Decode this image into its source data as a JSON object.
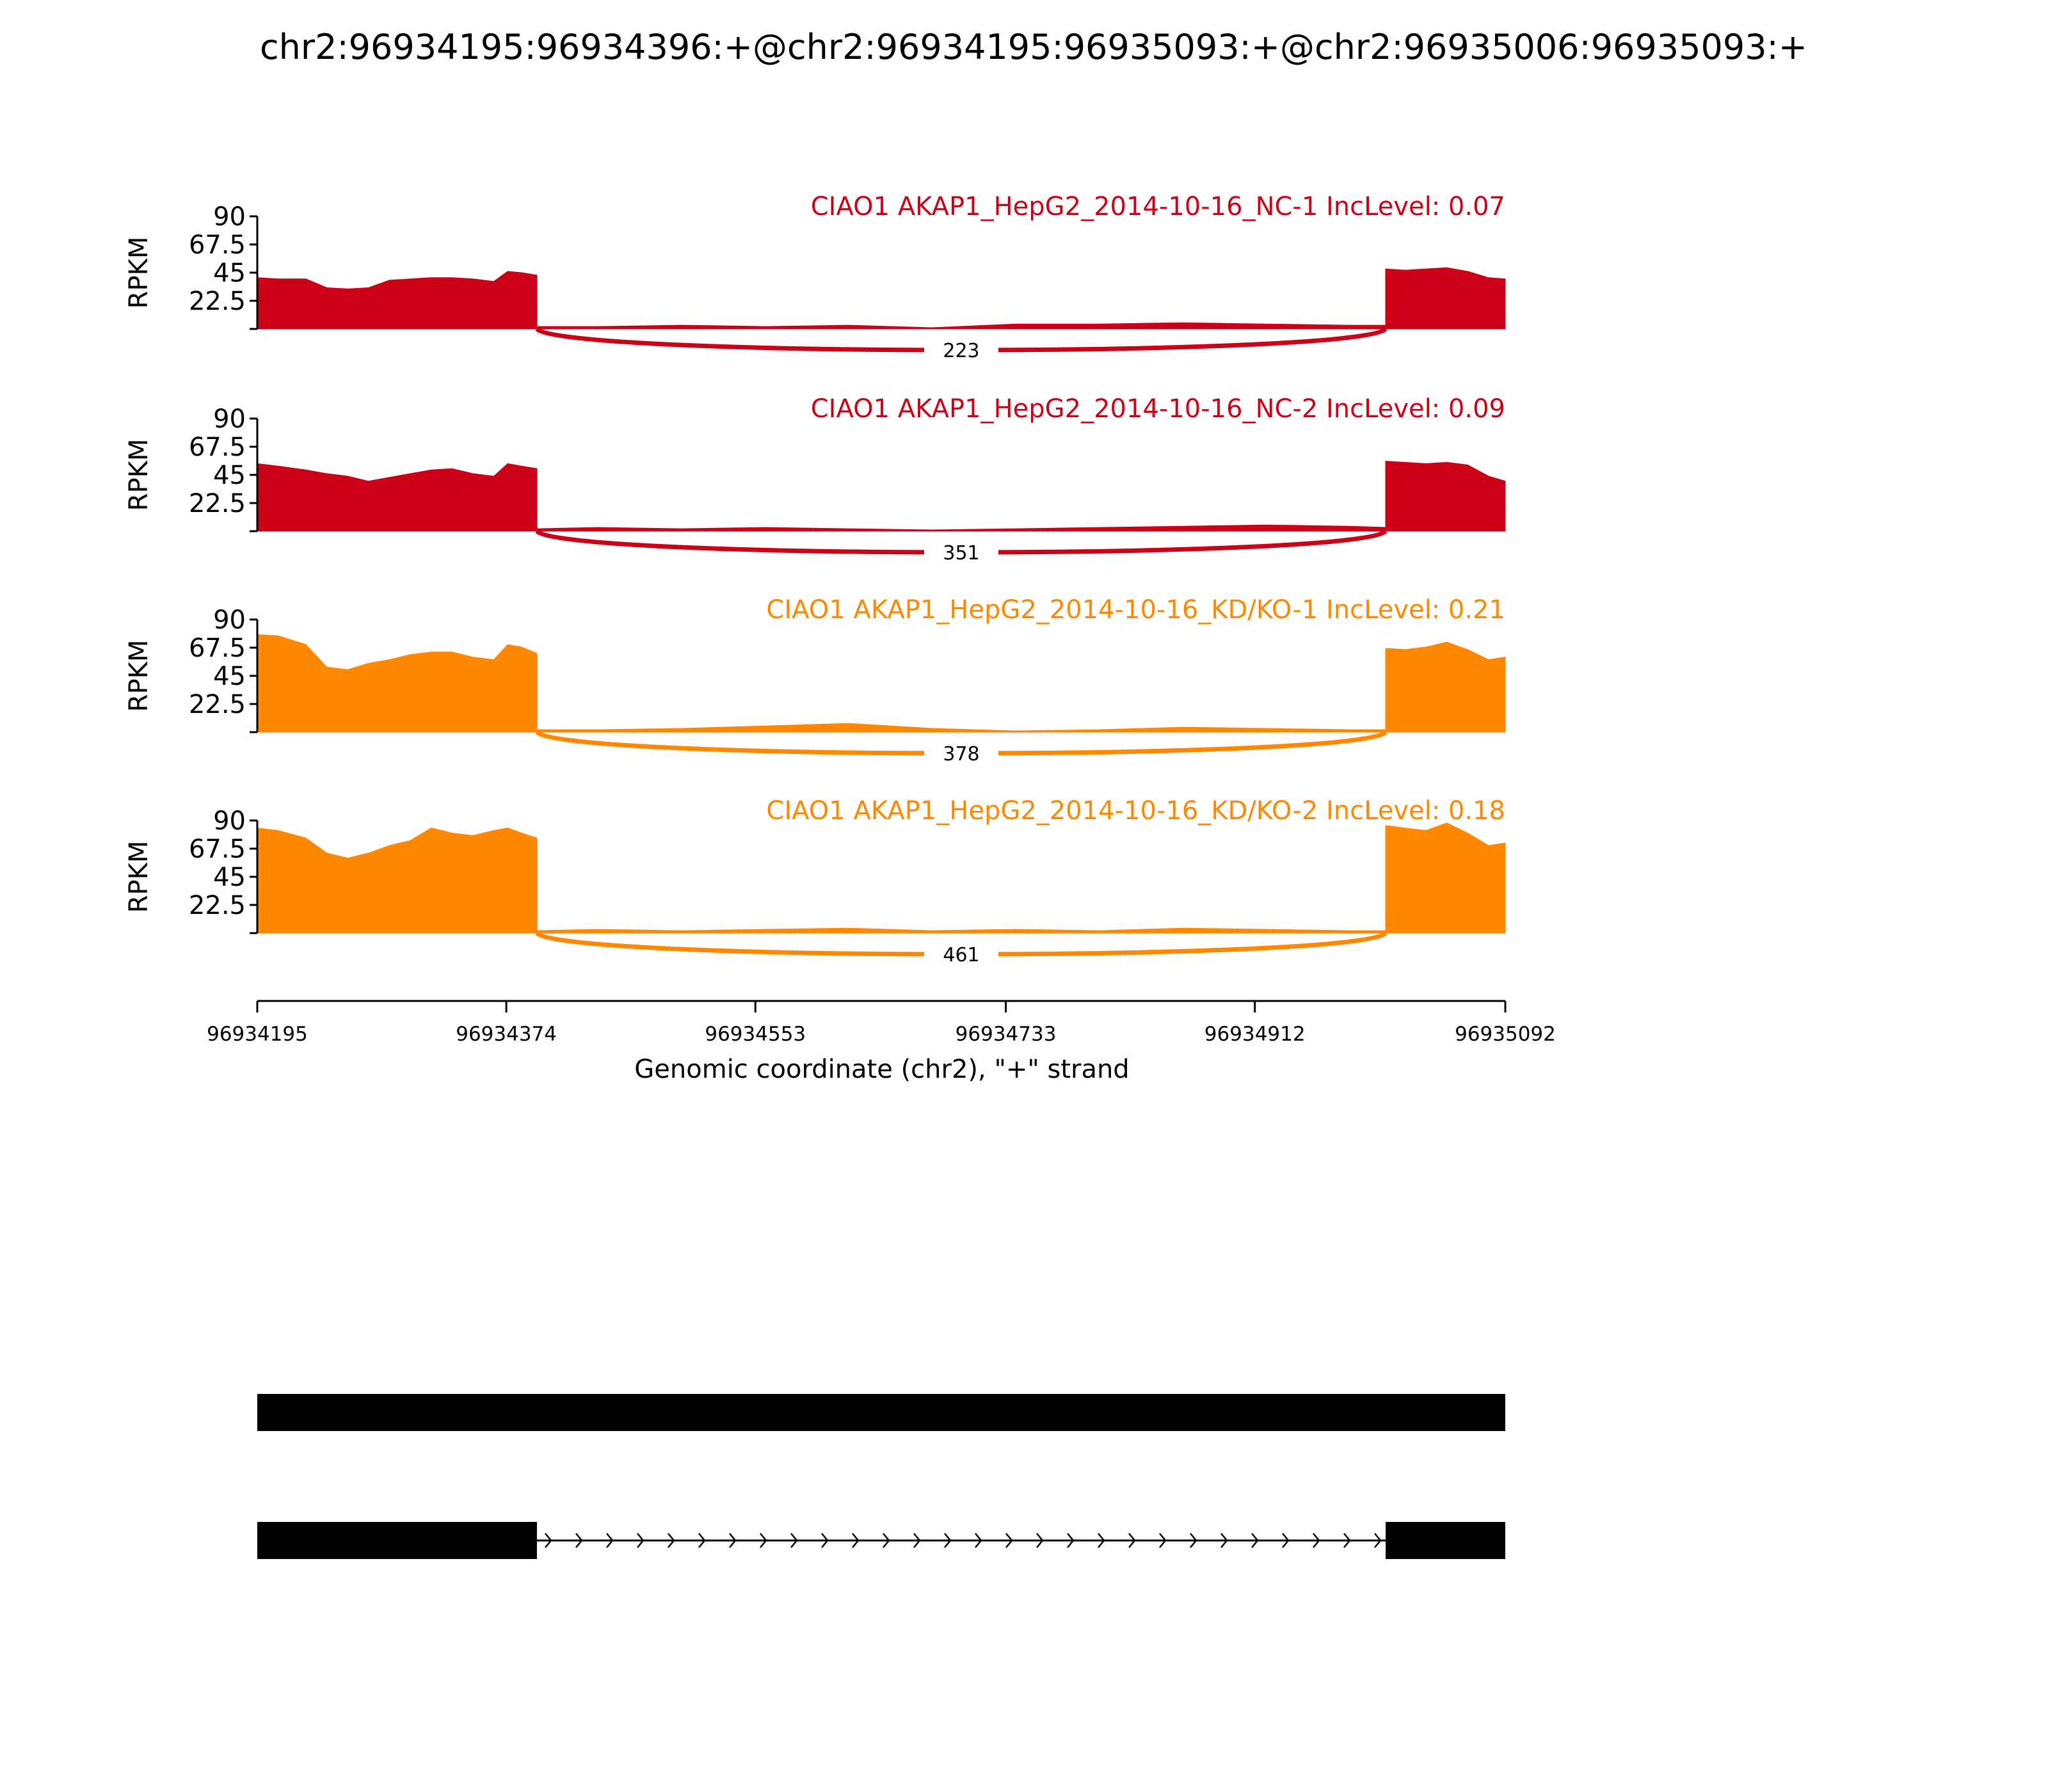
{
  "figure_title": "chr2:96934195:96934396:+@chr2:96934195:96935093:+@chr2:96935006:96935093:+",
  "colors": {
    "nc": "#cc0016",
    "kd": "#ff8800",
    "axis": "#000000",
    "annotation": "#000000"
  },
  "chart_data": {
    "type": "area",
    "title": "chr2:96934195:96934396:+@chr2:96934195:96935093:+@chr2:96935006:96935093:+",
    "xlabel": "Genomic coordinate (chr2), \"+\" strand",
    "ylabel": "RPKM",
    "xlim": [
      96934195,
      96935092
    ],
    "x_ticks": [
      96934195,
      96934374,
      96934553,
      96934733,
      96934912,
      96935092
    ],
    "x_tick_labels": [
      "96934195",
      "96934374",
      "96934553",
      "96934733",
      "96934912",
      "96935092"
    ],
    "ylim": [
      0,
      90
    ],
    "y_ticks": [
      22.5,
      45,
      67.5,
      90
    ],
    "y_tick_labels": [
      "22.5",
      "45",
      "67.5",
      "90"
    ],
    "grid": false,
    "exons": [
      [
        96934195,
        96934396
      ],
      [
        96935006,
        96935092
      ]
    ],
    "series": [
      {
        "name": "CIAO1 AKAP1_HepG2_2014-10-16_NC-1 IncLevel: 0.07",
        "color_key": "nc",
        "junction_count": "223",
        "coverage": {
          "x": [
            96934195,
            96934210,
            96934230,
            96934245,
            96934260,
            96934275,
            96934290,
            96934305,
            96934320,
            96934335,
            96934350,
            96934365,
            96934375,
            96934385,
            96934396,
            96934396,
            96934440,
            96934500,
            96934560,
            96934620,
            96934680,
            96934740,
            96934800,
            96934860,
            96934920,
            96934980,
            96935006,
            96935006,
            96935020,
            96935035,
            96935050,
            96935065,
            96935080,
            96935092
          ],
          "y": [
            41,
            40,
            40,
            33,
            32,
            33,
            39,
            40,
            41,
            41,
            40,
            38,
            46,
            45,
            43,
            2,
            2,
            3,
            2,
            3,
            1,
            4,
            4,
            5,
            4,
            3,
            3,
            48,
            47,
            48,
            49,
            46,
            41,
            40
          ]
        }
      },
      {
        "name": "CIAO1 AKAP1_HepG2_2014-10-16_NC-2 IncLevel: 0.09",
        "color_key": "nc",
        "junction_count": "351",
        "coverage": {
          "x": [
            96934195,
            96934210,
            96934230,
            96934245,
            96934260,
            96934275,
            96934290,
            96934305,
            96934320,
            96934335,
            96934350,
            96934365,
            96934375,
            96934385,
            96934396,
            96934396,
            96934440,
            96934500,
            96934560,
            96934620,
            96934680,
            96934740,
            96934800,
            96934860,
            96934920,
            96934980,
            96935006,
            96935006,
            96935020,
            96935035,
            96935050,
            96935065,
            96935080,
            96935092
          ],
          "y": [
            54,
            52,
            49,
            46,
            44,
            40,
            43,
            46,
            49,
            50,
            46,
            44,
            54,
            52,
            50,
            2,
            3,
            2,
            3,
            2,
            1,
            2,
            3,
            4,
            5,
            4,
            3,
            56,
            55,
            54,
            55,
            53,
            44,
            40
          ]
        }
      },
      {
        "name": "CIAO1 AKAP1_HepG2_2014-10-16_KD/KO-1 IncLevel: 0.21",
        "color_key": "kd",
        "junction_count": "378",
        "coverage": {
          "x": [
            96934195,
            96934210,
            96934230,
            96934245,
            96934260,
            96934275,
            96934290,
            96934305,
            96934320,
            96934335,
            96934350,
            96934365,
            96934375,
            96934385,
            96934396,
            96934396,
            96934440,
            96934500,
            96934560,
            96934620,
            96934680,
            96934740,
            96934800,
            96934860,
            96934920,
            96934980,
            96935006,
            96935006,
            96935020,
            96935035,
            96935050,
            96935065,
            96935080,
            96935092
          ],
          "y": [
            78,
            77,
            70,
            52,
            50,
            55,
            58,
            62,
            64,
            64,
            60,
            58,
            70,
            68,
            63,
            2,
            2,
            3,
            5,
            7,
            3,
            1,
            2,
            4,
            3,
            2,
            2,
            67,
            66,
            68,
            72,
            66,
            58,
            60
          ]
        }
      },
      {
        "name": "CIAO1 AKAP1_HepG2_2014-10-16_KD/KO-2 IncLevel: 0.18",
        "color_key": "kd",
        "junction_count": "461",
        "coverage": {
          "x": [
            96934195,
            96934210,
            96934230,
            96934245,
            96934260,
            96934275,
            96934290,
            96934305,
            96934320,
            96934335,
            96934350,
            96934365,
            96934375,
            96934385,
            96934396,
            96934396,
            96934440,
            96934500,
            96934560,
            96934620,
            96934680,
            96934740,
            96934800,
            96934860,
            96934920,
            96934980,
            96935006,
            96935006,
            96935020,
            96935035,
            96935050,
            96935065,
            96935080,
            96935092
          ],
          "y": [
            84,
            82,
            76,
            64,
            60,
            64,
            70,
            74,
            84,
            80,
            78,
            82,
            84,
            80,
            76,
            2,
            3,
            2,
            3,
            4,
            2,
            3,
            2,
            4,
            3,
            2,
            2,
            86,
            84,
            82,
            88,
            80,
            70,
            72
          ]
        }
      }
    ]
  }
}
